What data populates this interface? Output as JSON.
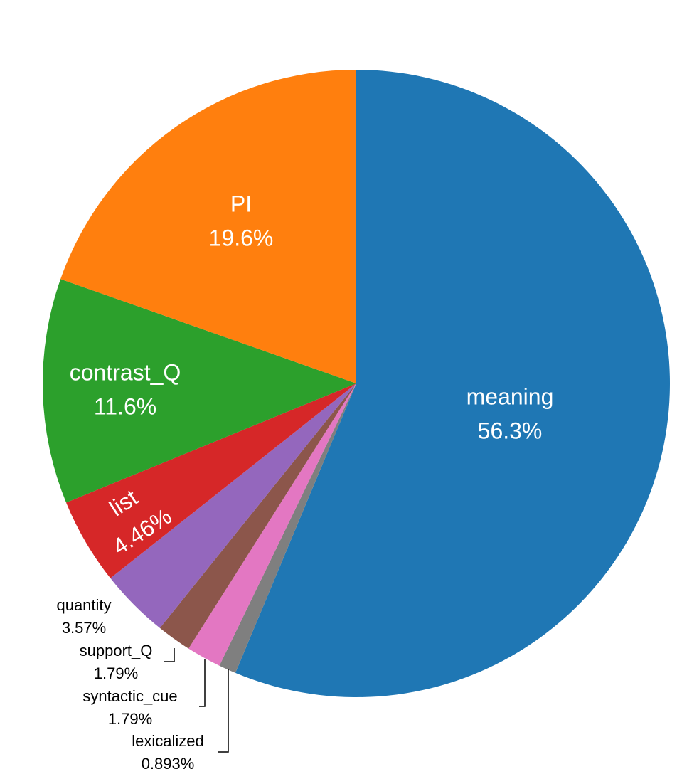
{
  "chart_data": {
    "type": "pie",
    "categories": [
      "meaning",
      "lexicalized",
      "syntactic_cue",
      "support_Q",
      "quantity",
      "list",
      "contrast_Q",
      "PI"
    ],
    "values": [
      56.3,
      0.893,
      1.79,
      1.79,
      3.57,
      4.46,
      11.6,
      19.6
    ],
    "value_labels": [
      "56.3%",
      "0.893%",
      "1.79%",
      "1.79%",
      "3.57%",
      "4.46%",
      "11.6%",
      "19.6%"
    ],
    "colors": [
      "#1f77b4",
      "#7f7f7f",
      "#e377c2",
      "#8c564b",
      "#9467bd",
      "#d62728",
      "#2ca02c",
      "#ff7f0e"
    ]
  }
}
